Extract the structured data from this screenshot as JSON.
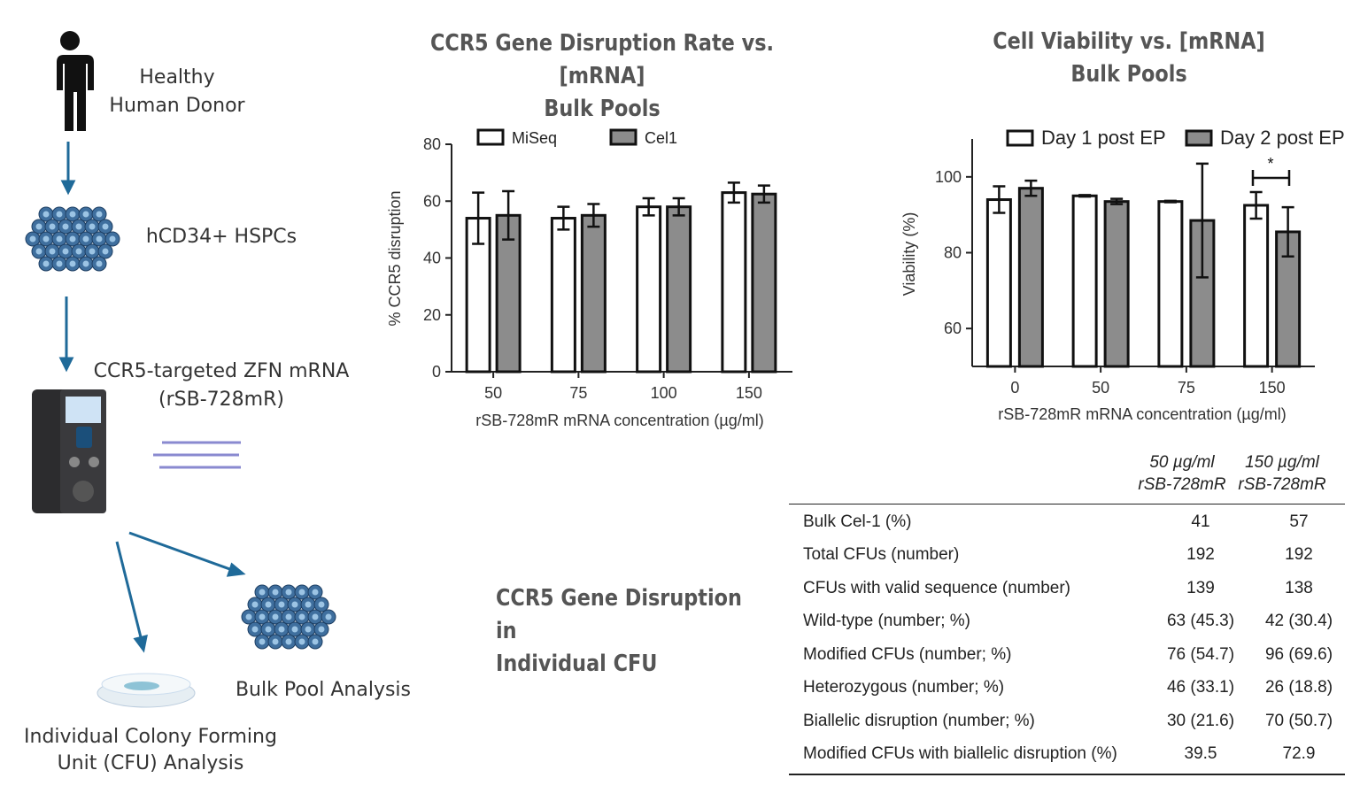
{
  "diagram": {
    "donor": "Healthy\nHuman Donor",
    "cells": "hCD34+ HSPCs",
    "mrna": "CCR5-targeted ZFN mRNA\n(rSB-728mR)",
    "bulk": "Bulk Pool Analysis",
    "cfu": "Individual Colony Forming\nUnit (CFU) Analysis",
    "cfu_title": "CCR5 Gene Disruption in\nIndividual CFU",
    "colors": {
      "arrow": "#1f6a99",
      "cell": "#3f6f9e"
    }
  },
  "chart_data": [
    {
      "type": "bar",
      "title": "CCR5 Gene Disruption Rate vs. [mRNA]\nBulk Pools",
      "xlabel": "rSB-728mR mRNA concentration (µg/ml)",
      "ylabel": "% CCR5 disruption",
      "categories": [
        "50",
        "75",
        "100",
        "150"
      ],
      "ylim": [
        0,
        80
      ],
      "yticks": [
        0,
        20,
        40,
        60,
        80
      ],
      "legend": "top",
      "series": [
        {
          "name": "MiSeq",
          "color": "#ffffff",
          "values": [
            54,
            54,
            58,
            63
          ],
          "errors": [
            9,
            4,
            3,
            3.5
          ]
        },
        {
          "name": "Cel1",
          "color": "#8c8c8c",
          "values": [
            55,
            55,
            58,
            62.5
          ],
          "errors": [
            8.5,
            4,
            3,
            3
          ]
        }
      ]
    },
    {
      "type": "bar",
      "title": "Cell Viability vs. [mRNA]\nBulk Pools",
      "xlabel": "rSB-728mR mRNA concentration (µg/ml)",
      "ylabel": "Viability (%)",
      "categories": [
        "0",
        "50",
        "75",
        "150"
      ],
      "ylim": [
        50,
        110
      ],
      "yticks": [
        60,
        80,
        100
      ],
      "legend": "top",
      "series": [
        {
          "name": "Day 1 post EP",
          "color": "#ffffff",
          "values": [
            94,
            95,
            93.5,
            92.5
          ],
          "errors": [
            3.5,
            0.2,
            0.2,
            3.5
          ]
        },
        {
          "name": "Day 2 post EP",
          "color": "#8c8c8c",
          "values": [
            97,
            93.5,
            88.5,
            85.5
          ],
          "errors": [
            2,
            0.7,
            15,
            6.5
          ]
        }
      ],
      "annotation": "*"
    }
  ],
  "table": {
    "headers": [
      "50 µg/ml\nrSB-728mR",
      "150 µg/ml\nrSB-728mR"
    ],
    "rows": [
      {
        "label": "Bulk Cel-1 (%)",
        "a": "41",
        "b": "57"
      },
      {
        "label": "Total CFUs (number)",
        "a": "192",
        "b": "192"
      },
      {
        "label": "CFUs with valid sequence (number)",
        "a": "139",
        "b": "138"
      },
      {
        "label": "Wild-type (number; %)",
        "a": "63 (45.3)",
        "b": "42 (30.4)"
      },
      {
        "label": "Modified CFUs (number; %)",
        "a": "76 (54.7)",
        "b": "96 (69.6)"
      },
      {
        "label": "Heterozygous (number; %)",
        "a": "46 (33.1)",
        "b": "26 (18.8)"
      },
      {
        "label": "Biallelic disruption (number; %)",
        "a": "30 (21.6)",
        "b": "70 (50.7)"
      },
      {
        "label": "Modified CFUs with biallelic disruption (%)",
        "a": "39.5",
        "b": "72.9"
      }
    ]
  }
}
